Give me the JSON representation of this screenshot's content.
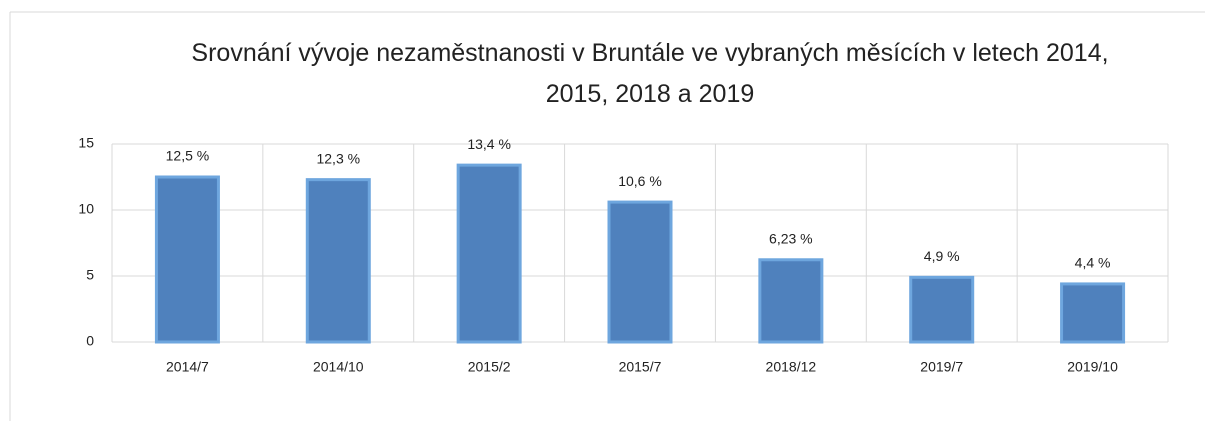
{
  "chart_data": {
    "type": "bar",
    "title": "Srovnání vývoje nezaměstnanosti v Bruntále ve vybraných měsících v letech 2014, 2015, 2018 a 2019",
    "categories": [
      "2014/7",
      "2014/10",
      "2015/2",
      "2015/7",
      "2018/12",
      "2019/7",
      "2019/10"
    ],
    "values": [
      12.5,
      12.3,
      13.4,
      10.6,
      6.23,
      4.9,
      4.4
    ],
    "value_labels": [
      "12,5 %",
      "12,3 %",
      "13,4 %",
      "10,6 %",
      "6,23 %",
      "4,9 %",
      "4,4 %"
    ],
    "color": "#4f81bd",
    "ylim": [
      0,
      15
    ],
    "yticks": [
      0,
      5,
      10,
      15
    ],
    "grid": true
  }
}
